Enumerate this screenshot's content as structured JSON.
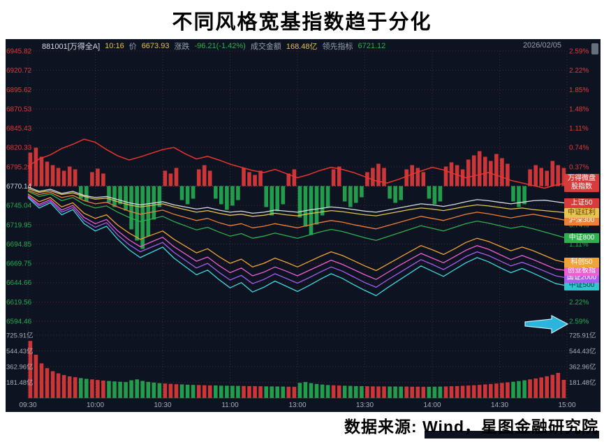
{
  "page": {
    "title": "不同风格宽基指数趋于分化",
    "source_note": "数据来源: Wind，星图金融研究院"
  },
  "header": {
    "code": "881001[万得全A]",
    "time": "10:16",
    "price_label": "价",
    "price": "6673.93",
    "change_label": "涨跌",
    "change": "-96.21(-1.42%)",
    "amount_label": "成交金额",
    "amount": "168.48亿",
    "leading_label": "领先指标",
    "leading": "6721.12",
    "date": "2026/02/05"
  },
  "axes": {
    "left_prices": [
      {
        "t": "6945.82",
        "c": "u"
      },
      {
        "t": "6920.72",
        "c": "u"
      },
      {
        "t": "6895.62",
        "c": "u"
      },
      {
        "t": "6870.53",
        "c": "u"
      },
      {
        "t": "6845.43",
        "c": "u"
      },
      {
        "t": "6820.33",
        "c": "u"
      },
      {
        "t": "6795.24",
        "c": "u"
      },
      {
        "t": "6770.14",
        "c": "f"
      },
      {
        "t": "6745.04",
        "c": "d"
      },
      {
        "t": "6719.95",
        "c": "d"
      },
      {
        "t": "6694.85",
        "c": "d"
      },
      {
        "t": "6669.75",
        "c": "d"
      },
      {
        "t": "6644.66",
        "c": "d"
      },
      {
        "t": "6619.56",
        "c": "d"
      },
      {
        "t": "6594.46",
        "c": "d"
      }
    ],
    "right_percents": [
      {
        "row": 0,
        "t": "2.59%",
        "c": "u"
      },
      {
        "row": 1,
        "t": "2.22%",
        "c": "u"
      },
      {
        "row": 2,
        "t": "1.85%",
        "c": "u"
      },
      {
        "row": 3,
        "t": "1.48%",
        "c": "u"
      },
      {
        "row": 4,
        "t": "1.11%",
        "c": "u"
      },
      {
        "row": 5,
        "t": "0.74%",
        "c": "u"
      },
      {
        "row": 6,
        "t": "0.37%",
        "c": "u"
      },
      {
        "row": 9,
        "t": "0.74%",
        "c": "d"
      },
      {
        "row": 10,
        "t": "1.11%",
        "c": "d"
      },
      {
        "row": 13,
        "t": "2.22%",
        "c": "d"
      },
      {
        "row": 14,
        "t": "2.59%",
        "c": "d"
      }
    ],
    "volume_levels": [
      "725.91亿",
      "544.43亿",
      "362.96亿",
      "181.48亿"
    ],
    "times": [
      "09:30",
      "10:00",
      "10:30",
      "11:00",
      "13:00",
      "13:30",
      "14:00",
      "14:30",
      "15:00"
    ]
  },
  "colors": {
    "up": "#e23b3b",
    "down": "#23ad52",
    "flat": "#cdd3da",
    "grid": "#4f2833",
    "grid_zero": "#7a5560",
    "axis_text": "#a7b0ba",
    "bg": "#0d1320",
    "arrow": "#2bb5dc"
  },
  "chart_data": {
    "type": "line",
    "title": "不同风格宽基指数趋于分化",
    "session": [
      "09:30-11:30",
      "13:00-15:00"
    ],
    "percent_axis": {
      "max": 2.59,
      "min": -2.59,
      "step": 0.37
    },
    "price_axis": {
      "preclose": 6770.14,
      "max": 6945.82,
      "min": 6594.46
    },
    "volume_axis_max_yi": 725.91,
    "line_sample_minutes": 5,
    "bar_sample_minutes": 2.5,
    "series": [
      {
        "key": "zz500",
        "name": "中证500",
        "color": "#3fd8e0",
        "badge_bg": "#2ec7cf",
        "badge_fg": "#063b3e",
        "wrap": false,
        "values": [
          -0.22,
          -0.42,
          -0.32,
          -0.55,
          -0.45,
          -0.72,
          -0.86,
          -0.77,
          -1.02,
          -1.22,
          -1.37,
          -1.27,
          -1.17,
          -1.38,
          -1.54,
          -1.7,
          -1.61,
          -1.79,
          -1.95,
          -1.85,
          -2.03,
          -1.94,
          -1.82,
          -1.92,
          -2.02,
          -1.91,
          -1.79,
          -1.68,
          -1.77,
          -1.89,
          -2.0,
          -2.1,
          -1.95,
          -1.81,
          -1.67,
          -1.53,
          -1.63,
          -1.73,
          -1.6,
          -1.47,
          -1.37,
          -1.45,
          -1.56,
          -1.66,
          -1.58,
          -1.67,
          -1.77,
          -1.87,
          -1.91
        ]
      },
      {
        "key": "gz2000",
        "name": "国证2000",
        "color": "#a45ef0",
        "badge_bg": "#a45ef0",
        "badge_fg": "#ffffff",
        "wrap": false,
        "values": [
          -0.2,
          -0.38,
          -0.29,
          -0.5,
          -0.41,
          -0.66,
          -0.79,
          -0.7,
          -0.94,
          -1.12,
          -1.26,
          -1.17,
          -1.08,
          -1.27,
          -1.42,
          -1.57,
          -1.48,
          -1.65,
          -1.8,
          -1.71,
          -1.87,
          -1.79,
          -1.68,
          -1.77,
          -1.86,
          -1.76,
          -1.65,
          -1.55,
          -1.63,
          -1.74,
          -1.85,
          -1.94,
          -1.8,
          -1.67,
          -1.54,
          -1.41,
          -1.5,
          -1.6,
          -1.48,
          -1.35,
          -1.26,
          -1.33,
          -1.43,
          -1.53,
          -1.46,
          -1.54,
          -1.63,
          -1.72,
          -1.76
        ]
      },
      {
        "key": "cyb",
        "name": "创业板指",
        "color": "#ee5fd2",
        "badge_bg": "#ee5fd2",
        "badge_fg": "#ffffff",
        "wrap": false,
        "values": [
          -0.18,
          -0.35,
          -0.26,
          -0.46,
          -0.37,
          -0.6,
          -0.72,
          -0.64,
          -0.86,
          -1.03,
          -1.16,
          -1.07,
          -0.98,
          -1.16,
          -1.3,
          -1.44,
          -1.36,
          -1.52,
          -1.66,
          -1.57,
          -1.72,
          -1.65,
          -1.55,
          -1.63,
          -1.72,
          -1.62,
          -1.52,
          -1.42,
          -1.5,
          -1.6,
          -1.7,
          -1.79,
          -1.66,
          -1.53,
          -1.41,
          -1.29,
          -1.38,
          -1.47,
          -1.35,
          -1.23,
          -1.14,
          -1.21,
          -1.31,
          -1.41,
          -1.33,
          -1.41,
          -1.5,
          -1.59,
          -1.62
        ]
      },
      {
        "key": "kc50",
        "name": "科创50",
        "color": "#f0a337",
        "badge_bg": "#f0a337",
        "badge_fg": "#ffffff",
        "wrap": false,
        "values": [
          -0.15,
          -0.3,
          -0.22,
          -0.4,
          -0.32,
          -0.52,
          -0.62,
          -0.55,
          -0.75,
          -0.9,
          -1.02,
          -0.94,
          -0.86,
          -1.02,
          -1.15,
          -1.28,
          -1.2,
          -1.35,
          -1.48,
          -1.4,
          -1.55,
          -1.48,
          -1.38,
          -1.46,
          -1.55,
          -1.45,
          -1.35,
          -1.26,
          -1.33,
          -1.43,
          -1.53,
          -1.62,
          -1.5,
          -1.38,
          -1.26,
          -1.14,
          -1.22,
          -1.31,
          -1.2,
          -1.08,
          -1.0,
          -1.06,
          -1.15,
          -1.24,
          -1.17,
          -1.24,
          -1.33,
          -1.42,
          -1.47
        ]
      },
      {
        "key": "zz800",
        "name": "中证800",
        "color": "#2fb04e",
        "badge_bg": "#2fb04e",
        "badge_fg": "#ffffff",
        "wrap": false,
        "values": [
          -0.1,
          -0.2,
          -0.15,
          -0.28,
          -0.22,
          -0.35,
          -0.42,
          -0.38,
          -0.5,
          -0.6,
          -0.68,
          -0.63,
          -0.58,
          -0.68,
          -0.76,
          -0.84,
          -0.79,
          -0.88,
          -0.96,
          -0.91,
          -1.0,
          -0.96,
          -0.9,
          -0.95,
          -1.0,
          -0.94,
          -0.88,
          -0.83,
          -0.87,
          -0.93,
          -0.99,
          -1.04,
          -0.97,
          -0.9,
          -0.83,
          -0.76,
          -0.81,
          -0.86,
          -0.79,
          -0.72,
          -0.67,
          -0.71,
          -0.76,
          -0.81,
          -0.77,
          -0.82,
          -0.88,
          -0.94,
          -1.0
        ]
      },
      {
        "key": "hs300",
        "name": "沪深300",
        "color": "#ef7f35",
        "badge_bg": "#ef7f35",
        "badge_fg": "#ffffff",
        "wrap": false,
        "values": [
          -0.08,
          -0.16,
          -0.12,
          -0.22,
          -0.18,
          -0.28,
          -0.34,
          -0.31,
          -0.4,
          -0.48,
          -0.54,
          -0.5,
          -0.46,
          -0.54,
          -0.6,
          -0.66,
          -0.62,
          -0.7,
          -0.76,
          -0.72,
          -0.8,
          -0.77,
          -0.72,
          -0.76,
          -0.8,
          -0.75,
          -0.7,
          -0.66,
          -0.69,
          -0.74,
          -0.78,
          -0.82,
          -0.76,
          -0.7,
          -0.64,
          -0.58,
          -0.62,
          -0.66,
          -0.6,
          -0.54,
          -0.5,
          -0.53,
          -0.57,
          -0.61,
          -0.57,
          -0.54,
          -0.58,
          -0.62,
          -0.66
        ]
      },
      {
        "key": "zzhl",
        "name": "中证红利",
        "color": "#e6c44f",
        "badge_bg": "#e6c44f",
        "badge_fg": "#5c3f00",
        "wrap": false,
        "values": [
          -0.05,
          -0.12,
          -0.09,
          -0.16,
          -0.13,
          -0.2,
          -0.25,
          -0.23,
          -0.3,
          -0.36,
          -0.4,
          -0.37,
          -0.34,
          -0.4,
          -0.45,
          -0.5,
          -0.47,
          -0.52,
          -0.56,
          -0.54,
          -0.58,
          -0.56,
          -0.52,
          -0.55,
          -0.57,
          -0.53,
          -0.5,
          -0.47,
          -0.49,
          -0.52,
          -0.55,
          -0.57,
          -0.53,
          -0.49,
          -0.45,
          -0.42,
          -0.44,
          -0.47,
          -0.43,
          -0.39,
          -0.36,
          -0.38,
          -0.41,
          -0.44,
          -0.42,
          -0.45,
          -0.47,
          -0.49,
          -0.51
        ]
      },
      {
        "key": "sh50",
        "name": "上证50",
        "color": "#d8dde2",
        "badge_bg": "#d63c3c",
        "badge_fg": "#ffffff",
        "wrap": false,
        "values": [
          -0.02,
          -0.1,
          -0.06,
          -0.14,
          -0.1,
          -0.18,
          -0.22,
          -0.2,
          -0.26,
          -0.32,
          -0.36,
          -0.33,
          -0.3,
          -0.36,
          -0.4,
          -0.44,
          -0.41,
          -0.46,
          -0.5,
          -0.48,
          -0.52,
          -0.5,
          -0.46,
          -0.48,
          -0.5,
          -0.46,
          -0.43,
          -0.4,
          -0.42,
          -0.45,
          -0.48,
          -0.5,
          -0.46,
          -0.42,
          -0.38,
          -0.34,
          -0.36,
          -0.39,
          -0.35,
          -0.3,
          -0.26,
          -0.28,
          -0.31,
          -0.34,
          -0.31,
          -0.28,
          -0.27,
          -0.3,
          -0.33
        ]
      },
      {
        "key": "wdwp",
        "name": "万得微盘股指数",
        "color": "#e8352f",
        "badge_bg": "#d63c3c",
        "badge_fg": "#ffffff",
        "wrap": true,
        "width": 1.5,
        "values": [
          0.38,
          0.52,
          0.6,
          0.72,
          0.8,
          0.9,
          0.84,
          0.7,
          0.58,
          0.5,
          0.56,
          0.63,
          0.7,
          0.74,
          0.62,
          0.52,
          0.57,
          0.5,
          0.42,
          0.36,
          0.3,
          0.26,
          0.32,
          0.24,
          0.16,
          0.22,
          0.3,
          0.36,
          0.32,
          0.26,
          0.18,
          0.1,
          0.06,
          0.13,
          0.21,
          0.29,
          0.36,
          0.31,
          0.23,
          0.16,
          0.21,
          0.26,
          0.19,
          0.11,
          0.06,
          0.01,
          -0.04,
          0.02,
          0.06
        ]
      }
    ],
    "main_histogram": [
      48,
      55,
      42,
      35,
      30,
      26,
      22,
      28,
      24,
      -18,
      -22,
      20,
      25,
      18,
      -24,
      -30,
      -26,
      -35,
      -62,
      -78,
      -90,
      -72,
      -48,
      -30,
      22,
      18,
      26,
      -20,
      -26,
      -18,
      24,
      30,
      22,
      -18,
      -26,
      -34,
      -28,
      -20,
      26,
      20,
      16,
      22,
      -30,
      -42,
      -36,
      -26,
      18,
      24,
      -45,
      -58,
      -70,
      -55,
      -42,
      -30,
      24,
      28,
      -22,
      -30,
      -24,
      -16,
      20,
      26,
      32,
      26,
      -18,
      -24,
      -20,
      24,
      30,
      26,
      20,
      -18,
      -26,
      -22,
      28,
      34,
      30,
      24,
      38,
      44,
      50,
      42,
      36,
      46,
      40,
      32,
      -22,
      -30,
      -26,
      24,
      30,
      26,
      22,
      36,
      30,
      26
    ],
    "volume_bars": [
      660,
      500,
      400,
      345,
      310,
      285,
      265,
      250,
      240,
      230,
      222,
      215,
      208,
      202,
      197,
      192,
      188,
      184,
      205,
      215,
      198,
      186,
      178,
      172,
      168,
      164,
      160,
      157,
      154,
      152,
      150,
      148,
      146,
      145,
      143,
      142,
      141,
      140,
      139,
      138,
      137,
      136,
      135,
      134,
      133,
      132,
      131,
      130,
      175,
      185,
      172,
      162,
      156,
      150,
      147,
      144,
      142,
      140,
      138,
      137,
      136,
      135,
      134,
      134,
      133,
      133,
      132,
      132,
      131,
      131,
      130,
      130,
      131,
      132,
      134,
      136,
      138,
      141,
      144,
      148,
      152,
      157,
      162,
      168,
      174,
      181,
      188,
      196,
      205,
      215,
      226,
      238,
      252,
      268,
      290,
      210
    ]
  }
}
